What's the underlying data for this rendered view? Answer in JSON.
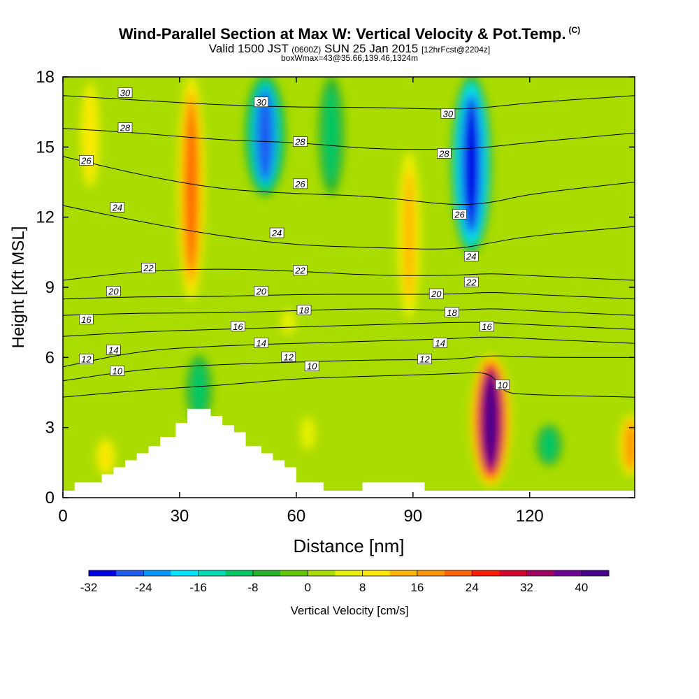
{
  "header": {
    "title": "Wind-Parallel Section at Max W: Vertical Velocity & Pot.Temp.",
    "copyright": "(C)",
    "valid_prefix": "Valid 1500 JST",
    "valid_zulu": "(0600Z)",
    "valid_date": "SUN 25 Jan 2015",
    "forecast": "[12hrFcst@2204z]",
    "box_info": "boxWmax=43@35.66,139.46,1324m"
  },
  "chart_data": {
    "type": "heatmap",
    "title": "Wind-Parallel Section at Max W: Vertical Velocity & Pot.Temp.",
    "xlabel": "Distance [nm]",
    "ylabel": "Height [Kft MSL]",
    "xlim": [
      0,
      147
    ],
    "ylim": [
      0,
      18
    ],
    "xticks": [
      0,
      30,
      60,
      90,
      120
    ],
    "yticks": [
      0,
      3,
      6,
      9,
      12,
      15,
      18
    ],
    "colorbar": {
      "label": "Vertical Velocity [cm/s]",
      "ticks": [
        -32,
        -24,
        -16,
        -8,
        0,
        8,
        16,
        24,
        32,
        40
      ],
      "levels": [
        -32,
        -28,
        -24,
        -20,
        -16,
        -12,
        -8,
        -4,
        0,
        4,
        8,
        12,
        16,
        20,
        24,
        28,
        32,
        36,
        40,
        44
      ],
      "colors": [
        "#0000e6",
        "#1e5cf0",
        "#0096ff",
        "#00e6ff",
        "#00dcb4",
        "#00c864",
        "#28b428",
        "#64c800",
        "#aadc00",
        "#e6f000",
        "#ffe600",
        "#ffb400",
        "#ff9600",
        "#ff6400",
        "#ff1e00",
        "#d70032",
        "#a00064",
        "#6e0096",
        "#46008c"
      ]
    },
    "features": {
      "updrafts": [
        {
          "x": 33,
          "z_range": [
            8.5,
            18
          ],
          "peak_w": 20
        },
        {
          "x": 89,
          "z_range": [
            7.5,
            15
          ],
          "peak_w": 12
        },
        {
          "x": 110,
          "z_range": [
            0.6,
            6
          ],
          "peak_w": 43
        },
        {
          "x": 7,
          "z_range": [
            13,
            18
          ],
          "peak_w": 8
        },
        {
          "x": 11,
          "z_range": [
            1,
            2.5
          ],
          "peak_w": 8
        },
        {
          "x": 58,
          "z_range": [
            7,
            8
          ],
          "peak_w": 6
        },
        {
          "x": 63,
          "z_range": [
            2,
            3.5
          ],
          "peak_w": 6
        },
        {
          "x": 146,
          "z_range": [
            1,
            3.5
          ],
          "peak_w": 16
        }
      ],
      "downdrafts": [
        {
          "x": 105,
          "z_range": [
            10.5,
            18
          ],
          "peak_w": -32
        },
        {
          "x": 52,
          "z_range": [
            13,
            18
          ],
          "peak_w": -26
        },
        {
          "x": 69,
          "z_range": [
            13,
            18
          ],
          "peak_w": -12
        },
        {
          "x": 35,
          "z_range": [
            3.3,
            6
          ],
          "peak_w": -12
        },
        {
          "x": 125,
          "z_range": [
            1.5,
            3
          ],
          "peak_w": -12
        }
      ]
    },
    "theta_contours": [
      {
        "label": "10",
        "points": [
          [
            0,
            4.3
          ],
          [
            20,
            4.6
          ],
          [
            40,
            4.8
          ],
          [
            60,
            5.1
          ],
          [
            80,
            5.2
          ],
          [
            100,
            5.3
          ],
          [
            110,
            5.4
          ],
          [
            113,
            4.5
          ],
          [
            120,
            4.4
          ],
          [
            147,
            4.3
          ]
        ]
      },
      {
        "label": "12",
        "points": [
          [
            0,
            5.0
          ],
          [
            20,
            5.5
          ],
          [
            40,
            5.7
          ],
          [
            60,
            5.8
          ],
          [
            80,
            5.9
          ],
          [
            100,
            5.9
          ],
          [
            110,
            6.1
          ],
          [
            120,
            6.0
          ],
          [
            147,
            6.0
          ]
        ]
      },
      {
        "label": "14",
        "points": [
          [
            0,
            5.6
          ],
          [
            20,
            6.3
          ],
          [
            40,
            6.5
          ],
          [
            60,
            6.6
          ],
          [
            80,
            6.7
          ],
          [
            100,
            6.8
          ],
          [
            110,
            6.9
          ],
          [
            120,
            6.8
          ],
          [
            147,
            6.6
          ]
        ]
      },
      {
        "label": "16",
        "points": [
          [
            0,
            6.9
          ],
          [
            20,
            7.1
          ],
          [
            40,
            7.2
          ],
          [
            60,
            7.3
          ],
          [
            80,
            7.4
          ],
          [
            100,
            7.5
          ],
          [
            110,
            7.5
          ],
          [
            120,
            7.4
          ],
          [
            147,
            7.2
          ]
        ]
      },
      {
        "label": "18",
        "points": [
          [
            0,
            7.8
          ],
          [
            20,
            7.9
          ],
          [
            40,
            7.9
          ],
          [
            60,
            8.0
          ],
          [
            80,
            8.1
          ],
          [
            100,
            8.0
          ],
          [
            110,
            8.1
          ],
          [
            120,
            8.0
          ],
          [
            147,
            7.8
          ]
        ]
      },
      {
        "label": "20",
        "points": [
          [
            0,
            8.5
          ],
          [
            20,
            8.6
          ],
          [
            40,
            8.6
          ],
          [
            60,
            8.7
          ],
          [
            80,
            8.7
          ],
          [
            100,
            8.7
          ],
          [
            110,
            8.8
          ],
          [
            120,
            8.7
          ],
          [
            147,
            8.5
          ]
        ]
      },
      {
        "label": "22",
        "points": [
          [
            0,
            9.3
          ],
          [
            20,
            9.7
          ],
          [
            40,
            9.8
          ],
          [
            60,
            9.7
          ],
          [
            80,
            9.5
          ],
          [
            100,
            9.5
          ],
          [
            110,
            9.6
          ],
          [
            120,
            9.5
          ],
          [
            147,
            9.3
          ]
        ]
      },
      {
        "label": "24",
        "points": [
          [
            0,
            12.5
          ],
          [
            20,
            11.8
          ],
          [
            40,
            11.2
          ],
          [
            60,
            10.8
          ],
          [
            80,
            10.7
          ],
          [
            100,
            10.6
          ],
          [
            110,
            10.9
          ],
          [
            120,
            11.2
          ],
          [
            147,
            11.6
          ]
        ]
      },
      {
        "label": "26",
        "points": [
          [
            0,
            14.6
          ],
          [
            20,
            13.8
          ],
          [
            40,
            13.2
          ],
          [
            60,
            13.0
          ],
          [
            80,
            12.9
          ],
          [
            100,
            12.5
          ],
          [
            110,
            12.6
          ],
          [
            120,
            13.0
          ],
          [
            147,
            13.5
          ]
        ]
      },
      {
        "label": "28",
        "points": [
          [
            0,
            15.8
          ],
          [
            20,
            15.6
          ],
          [
            40,
            15.3
          ],
          [
            60,
            15.2
          ],
          [
            80,
            14.9
          ],
          [
            100,
            14.9
          ],
          [
            110,
            15.0
          ],
          [
            120,
            15.2
          ],
          [
            147,
            15.6
          ]
        ]
      },
      {
        "label": "30",
        "points": [
          [
            0,
            17.2
          ],
          [
            20,
            17.0
          ],
          [
            40,
            16.8
          ],
          [
            60,
            16.7
          ],
          [
            80,
            16.7
          ],
          [
            100,
            16.6
          ],
          [
            110,
            16.7
          ],
          [
            120,
            16.9
          ],
          [
            147,
            17.2
          ]
        ]
      }
    ],
    "contour_label_positions": [
      {
        "label": "30",
        "x": 16,
        "z": 17.3
      },
      {
        "label": "28",
        "x": 16,
        "z": 15.8
      },
      {
        "label": "26",
        "x": 6,
        "z": 14.4
      },
      {
        "label": "24",
        "x": 14,
        "z": 12.4
      },
      {
        "label": "22",
        "x": 22,
        "z": 9.8
      },
      {
        "label": "20",
        "x": 13,
        "z": 8.8
      },
      {
        "label": "16",
        "x": 6,
        "z": 7.6
      },
      {
        "label": "14",
        "x": 13,
        "z": 6.3
      },
      {
        "label": "12",
        "x": 6,
        "z": 5.9
      },
      {
        "label": "10",
        "x": 14,
        "z": 5.4
      },
      {
        "label": "30",
        "x": 51,
        "z": 16.9
      },
      {
        "label": "28",
        "x": 61,
        "z": 15.2
      },
      {
        "label": "26",
        "x": 61,
        "z": 13.4
      },
      {
        "label": "24",
        "x": 55,
        "z": 11.3
      },
      {
        "label": "22",
        "x": 61,
        "z": 9.7
      },
      {
        "label": "20",
        "x": 51,
        "z": 8.8
      },
      {
        "label": "18",
        "x": 62,
        "z": 8.0
      },
      {
        "label": "16",
        "x": 45,
        "z": 7.3
      },
      {
        "label": "14",
        "x": 51,
        "z": 6.6
      },
      {
        "label": "12",
        "x": 58,
        "z": 6.0
      },
      {
        "label": "10",
        "x": 64,
        "z": 5.6
      },
      {
        "label": "30",
        "x": 99,
        "z": 16.4
      },
      {
        "label": "28",
        "x": 98,
        "z": 14.7
      },
      {
        "label": "26",
        "x": 102,
        "z": 12.1
      },
      {
        "label": "24",
        "x": 105,
        "z": 10.3
      },
      {
        "label": "22",
        "x": 105,
        "z": 9.2
      },
      {
        "label": "20",
        "x": 96,
        "z": 8.7
      },
      {
        "label": "18",
        "x": 100,
        "z": 7.9
      },
      {
        "label": "16",
        "x": 109,
        "z": 7.3
      },
      {
        "label": "14",
        "x": 97,
        "z": 6.6
      },
      {
        "label": "12",
        "x": 93,
        "z": 5.9
      },
      {
        "label": "10",
        "x": 113,
        "z": 4.8
      }
    ],
    "terrain": [
      [
        0,
        0.3
      ],
      [
        3,
        0.3
      ],
      [
        3,
        0.65
      ],
      [
        10,
        0.65
      ],
      [
        10,
        1.0
      ],
      [
        13,
        1.0
      ],
      [
        13,
        1.3
      ],
      [
        16,
        1.3
      ],
      [
        16,
        1.6
      ],
      [
        19,
        1.6
      ],
      [
        19,
        1.9
      ],
      [
        22,
        1.9
      ],
      [
        22,
        2.2
      ],
      [
        25,
        2.2
      ],
      [
        25,
        2.6
      ],
      [
        29,
        2.6
      ],
      [
        29,
        3.2
      ],
      [
        32,
        3.2
      ],
      [
        32,
        3.8
      ],
      [
        38,
        3.8
      ],
      [
        38,
        3.5
      ],
      [
        41,
        3.5
      ],
      [
        41,
        3.1
      ],
      [
        44,
        3.1
      ],
      [
        44,
        2.8
      ],
      [
        47,
        2.8
      ],
      [
        47,
        2.2
      ],
      [
        51,
        2.2
      ],
      [
        51,
        1.9
      ],
      [
        54,
        1.9
      ],
      [
        54,
        1.6
      ],
      [
        57,
        1.6
      ],
      [
        57,
        1.3
      ],
      [
        60,
        1.3
      ],
      [
        60,
        0.65
      ],
      [
        67,
        0.65
      ],
      [
        67,
        0.3
      ],
      [
        77,
        0.3
      ],
      [
        77,
        0.65
      ],
      [
        93,
        0.65
      ],
      [
        93,
        0.3
      ],
      [
        147,
        0.3
      ]
    ]
  }
}
